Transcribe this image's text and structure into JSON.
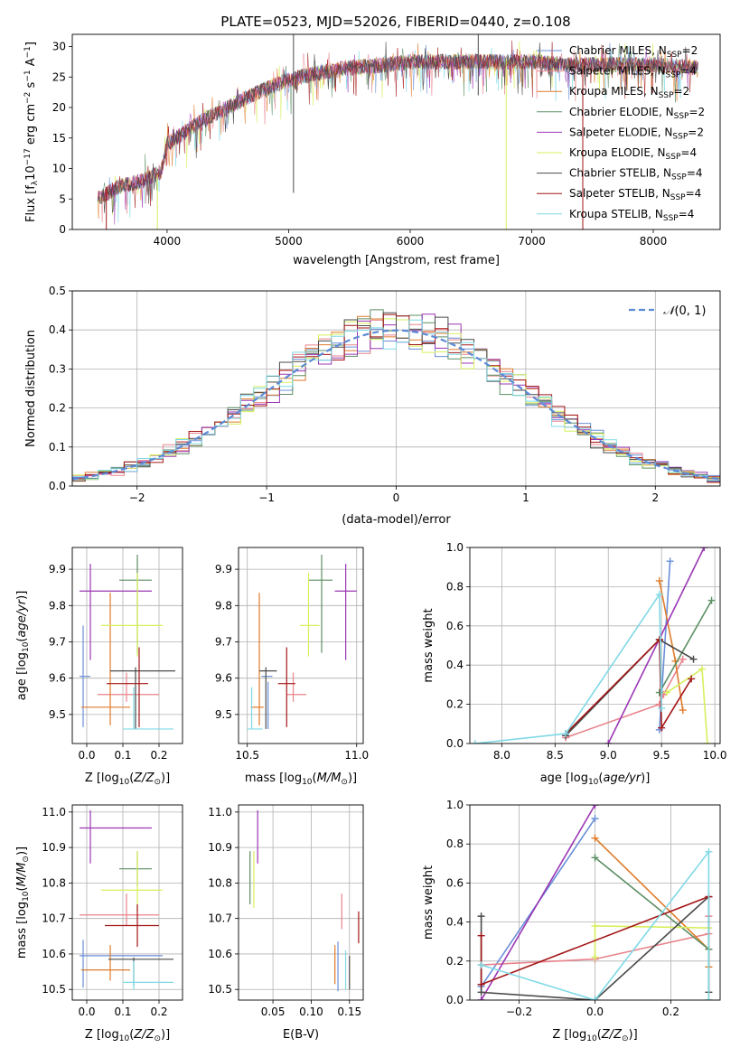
{
  "figure": {
    "title": "PLATE=0523, MJD=52026, FIBERID=0440, z=0.108"
  },
  "models": [
    {
      "name": "Chabrier MILES, N$_{SSP}$=2",
      "label": "Chabrier MILES, N",
      "sub": "SSP",
      "tail": "=2",
      "color": "#6a8fd8"
    },
    {
      "name": "Salpeter MILES, N$_{SSP}$=4",
      "label": "Salpeter MILES, N",
      "sub": "SSP",
      "tail": "=4",
      "color": "#e8838c"
    },
    {
      "name": "Kroupa MILES, N$_{SSP}$=2",
      "label": "Kroupa MILES, N",
      "sub": "SSP",
      "tail": "=2",
      "color": "#e07b2a"
    },
    {
      "name": "Chabrier ELODIE, N$_{SSP}$=2",
      "label": "Chabrier ELODIE, N",
      "sub": "SSP",
      "tail": "=2",
      "color": "#5c8f63"
    },
    {
      "name": "Salpeter ELODIE, N$_{SSP}$=2",
      "label": "Salpeter ELODIE, N",
      "sub": "SSP",
      "tail": "=2",
      "color": "#9b36b4"
    },
    {
      "name": "Kroupa ELODIE, N$_{SSP}$=4",
      "label": "Kroupa ELODIE, N",
      "sub": "SSP",
      "tail": "=4",
      "color": "#d6ef5c"
    },
    {
      "name": "Chabrier STELIB, N$_{SSP}$=4",
      "label": "Chabrier STELIB, N",
      "sub": "SSP",
      "tail": "=4",
      "color": "#4a4a4a"
    },
    {
      "name": "Salpeter STELIB, N$_{SSP}$=4",
      "label": "Salpeter STELIB, N",
      "sub": "SSP",
      "tail": "=4",
      "color": "#a31717"
    },
    {
      "name": "Kroupa STELIB, N$_{SSP}$=4",
      "label": "Kroupa STELIB, N",
      "sub": "SSP",
      "tail": "=4",
      "color": "#7fd9e6"
    }
  ],
  "chart_data": [
    {
      "id": "spectrum",
      "type": "line",
      "xlabel": "wavelength [Angstrom, rest frame]",
      "ylabel": "Flux [f_λ 10^-17 erg cm^-2 s^-1 A^-1]",
      "xlim": [
        3220,
        8550
      ],
      "ylim": [
        0,
        32
      ],
      "xticks": [
        4000,
        5000,
        6000,
        7000,
        8000
      ],
      "yticks": [
        0,
        5,
        10,
        15,
        20,
        25,
        30
      ],
      "x_range": [
        3430,
        8370
      ],
      "continuum": {
        "x": [
          3430,
          3600,
          3800,
          3950,
          4000,
          4300,
          4500,
          4800,
          5000,
          5200,
          5500,
          5800,
          6000,
          6300,
          6600,
          6800,
          7000,
          7300,
          7600,
          8000,
          8370
        ],
        "y": [
          5,
          7,
          8,
          9.5,
          14,
          18,
          20,
          23,
          24.5,
          25.5,
          26.5,
          27,
          27.5,
          27.5,
          27.5,
          27.5,
          27.5,
          27,
          27,
          27,
          26.5
        ]
      },
      "grid": false,
      "legend": "upper right"
    },
    {
      "id": "residuals",
      "type": "histogram",
      "xlabel": "(data-model)/error",
      "ylabel": "Normed distribution",
      "xlim": [
        -2.5,
        2.5
      ],
      "ylim": [
        0,
        0.5
      ],
      "xticks": [
        -2,
        -1,
        0,
        1,
        2
      ],
      "yticks": [
        0.0,
        0.1,
        0.2,
        0.3,
        0.4,
        0.5
      ],
      "bin_width": 0.1,
      "reference": {
        "label": "N(0,1)",
        "mu": 0,
        "sigma": 1
      },
      "grid": true,
      "legend": "upper right"
    },
    {
      "id": "age-vs-Z",
      "type": "errorbar",
      "xlabel": "Z [log10(Z/Z☉)]",
      "ylabel": "age [log10(age/yr)]",
      "xlim": [
        -0.04,
        0.265
      ],
      "ylim": [
        9.42,
        9.96
      ],
      "xticks": [
        0.0,
        0.1,
        0.2
      ],
      "yticks": [
        9.5,
        9.6,
        9.7,
        9.8,
        9.9
      ],
      "points": [
        {
          "m": 0,
          "x": -0.01,
          "xl": 0.01,
          "xh": 0.02,
          "y": 9.605,
          "yl": 9.465,
          "yh": 9.745
        },
        {
          "m": 1,
          "x": 0.11,
          "xl": 0.08,
          "xh": 0.09,
          "y": 9.555,
          "yl": 9.535,
          "yh": 9.615
        },
        {
          "m": 2,
          "x": 0.065,
          "xl": 0.08,
          "xh": 0.055,
          "y": 9.52,
          "yl": 9.47,
          "yh": 9.835
        },
        {
          "m": 3,
          "x": 0.14,
          "xl": 0.05,
          "xh": 0.04,
          "y": 9.87,
          "yl": 9.67,
          "yh": 9.94
        },
        {
          "m": 4,
          "x": 0.01,
          "xl": 0.03,
          "xh": 0.17,
          "y": 9.84,
          "yl": 9.65,
          "yh": 9.915
        },
        {
          "m": 5,
          "x": 0.14,
          "xl": 0.1,
          "xh": 0.07,
          "y": 9.745,
          "yl": 9.66,
          "yh": 9.89
        },
        {
          "m": 6,
          "x": 0.135,
          "xl": 0.07,
          "xh": 0.11,
          "y": 9.62,
          "yl": 9.46,
          "yh": 9.63
        },
        {
          "m": 7,
          "x": 0.145,
          "xl": 0.09,
          "xh": 0.025,
          "y": 9.585,
          "yl": 9.465,
          "yh": 9.685
        },
        {
          "m": 8,
          "x": 0.13,
          "xl": 0.03,
          "xh": 0.11,
          "y": 9.46,
          "yl": 9.46,
          "yh": 9.575
        }
      ]
    },
    {
      "id": "age-vs-mass",
      "type": "errorbar",
      "xlabel": "mass [log10(M/M☉)]",
      "ylabel": "",
      "xlim": [
        10.46,
        11.03
      ],
      "ylim": [
        9.42,
        9.96
      ],
      "xticks": [
        10.5,
        11.0
      ],
      "yticks": [
        9.5,
        9.6,
        9.7,
        9.8,
        9.9
      ],
      "points": [
        {
          "m": 0,
          "x": 10.595,
          "xl": 0.03,
          "xh": 0.02,
          "y": 9.605,
          "yl": 9.46,
          "yh": 9.59
        },
        {
          "m": 1,
          "x": 10.71,
          "xl": 0.03,
          "xh": 0.06,
          "y": 9.555,
          "yl": 9.535,
          "yh": 9.615
        },
        {
          "m": 2,
          "x": 10.555,
          "xl": 0.04,
          "xh": 0.02,
          "y": 9.52,
          "yl": 9.47,
          "yh": 9.835
        },
        {
          "m": 3,
          "x": 10.84,
          "xl": 0.06,
          "xh": 0.05,
          "y": 9.87,
          "yl": 9.67,
          "yh": 9.94
        },
        {
          "m": 4,
          "x": 10.95,
          "xl": 0.05,
          "xh": 0.05,
          "y": 9.84,
          "yl": 9.65,
          "yh": 9.915
        },
        {
          "m": 5,
          "x": 10.78,
          "xl": 0.04,
          "xh": 0.05,
          "y": 9.745,
          "yl": 9.66,
          "yh": 9.89
        },
        {
          "m": 6,
          "x": 10.585,
          "xl": 0.03,
          "xh": 0.05,
          "y": 9.62,
          "yl": 9.46,
          "yh": 9.63
        },
        {
          "m": 7,
          "x": 10.68,
          "xl": 0.04,
          "xh": 0.04,
          "y": 9.585,
          "yl": 9.465,
          "yh": 9.685
        },
        {
          "m": 8,
          "x": 10.52,
          "xl": 0.02,
          "xh": 0.05,
          "y": 9.46,
          "yl": 9.46,
          "yh": 9.575
        }
      ]
    },
    {
      "id": "weight-vs-age",
      "type": "line",
      "xlabel": "age [log10(age/yr)]",
      "ylabel": "mass weight",
      "xlim": [
        7.7,
        10.05
      ],
      "ylim": [
        0,
        1
      ],
      "xticks": [
        8.0,
        8.5,
        9.0,
        9.5,
        10.0
      ],
      "yticks": [
        0.0,
        0.2,
        0.4,
        0.6,
        0.8,
        1.0
      ],
      "series": [
        {
          "m": 0,
          "x": [
            9.48,
            9.58
          ],
          "y": [
            0.07,
            0.93
          ]
        },
        {
          "m": 1,
          "x": [
            8.6,
            9.48,
            9.52,
            9.7
          ],
          "y": [
            0.03,
            0.2,
            0.25,
            0.43
          ]
        },
        {
          "m": 2,
          "x": [
            9.48,
            9.63,
            9.7
          ],
          "y": [
            0.83,
            0.42,
            0.17
          ]
        },
        {
          "m": 3,
          "x": [
            9.48,
            9.97
          ],
          "y": [
            0.26,
            0.73
          ]
        },
        {
          "m": 4,
          "x": [
            9.0,
            9.9
          ],
          "y": [
            0.0,
            1.0
          ]
        },
        {
          "m": 5,
          "x": [
            9.55,
            9.88,
            9.93
          ],
          "y": [
            0.26,
            0.38,
            0.0
          ]
        },
        {
          "m": 6,
          "x": [
            8.6,
            9.48,
            9.8
          ],
          "y": [
            0.04,
            0.53,
            0.43
          ]
        },
        {
          "m": 7,
          "x": [
            8.6,
            9.48,
            9.5,
            9.78
          ],
          "y": [
            0.05,
            0.53,
            0.08,
            0.33
          ]
        },
        {
          "m": 8,
          "x": [
            7.75,
            8.6,
            9.48,
            9.5
          ],
          "y": [
            0.0,
            0.05,
            0.76,
            0.18
          ]
        }
      ]
    },
    {
      "id": "mass-vs-Z",
      "type": "errorbar",
      "xlabel": "Z [log10(Z/Z☉)]",
      "ylabel": "mass [log10(M/M☉)]",
      "xlim": [
        -0.04,
        0.265
      ],
      "ylim": [
        10.47,
        11.02
      ],
      "xticks": [
        0.0,
        0.1,
        0.2
      ],
      "yticks": [
        10.5,
        10.6,
        10.7,
        10.8,
        10.9,
        11.0
      ],
      "points": [
        {
          "m": 0,
          "x": -0.01,
          "xl": 0.01,
          "xh": 0.22,
          "y": 10.595,
          "yl": 0.09,
          "yh": 0.045
        },
        {
          "m": 1,
          "x": 0.11,
          "xl": 0.13,
          "xh": 0.09,
          "y": 10.71,
          "yl": 0.03,
          "yh": 0.06
        },
        {
          "m": 2,
          "x": 0.065,
          "xl": 0.08,
          "xh": 0.055,
          "y": 10.555,
          "yl": 0.03,
          "yh": 0.07
        },
        {
          "m": 3,
          "x": 0.14,
          "xl": 0.05,
          "xh": 0.04,
          "y": 10.84,
          "yl": 0.05,
          "yh": 0.05
        },
        {
          "m": 4,
          "x": 0.01,
          "xl": 0.03,
          "xh": 0.17,
          "y": 10.955,
          "yl": 0.1,
          "yh": 0.05
        },
        {
          "m": 5,
          "x": 0.14,
          "xl": 0.1,
          "xh": 0.07,
          "y": 10.78,
          "yl": 0.06,
          "yh": 0.11
        },
        {
          "m": 6,
          "x": 0.13,
          "xl": 0.07,
          "xh": 0.11,
          "y": 10.585,
          "yl": 0.075,
          "yh": 0.005
        },
        {
          "m": 7,
          "x": 0.14,
          "xl": 0.09,
          "xh": 0.06,
          "y": 10.68,
          "yl": 0.06,
          "yh": 0.06
        },
        {
          "m": 8,
          "x": 0.13,
          "xl": 0.03,
          "xh": 0.11,
          "y": 10.52,
          "yl": 0.02,
          "yh": 0.06
        }
      ]
    },
    {
      "id": "mass-vs-EBV",
      "type": "errorbar",
      "xlabel": "E(B-V)",
      "ylabel": "",
      "xlim": [
        0.005,
        0.168
      ],
      "ylim": [
        10.47,
        11.02
      ],
      "xticks": [
        0.05,
        0.1,
        0.15
      ],
      "yticks": [
        10.5,
        10.6,
        10.7,
        10.8,
        10.9,
        11.0
      ],
      "points": [
        {
          "m": 0,
          "x": 0.135,
          "y": 10.595,
          "yl": 0.1,
          "yh": 0.04
        },
        {
          "m": 1,
          "x": 0.14,
          "y": 10.71,
          "yl": 0.04,
          "yh": 0.06
        },
        {
          "m": 2,
          "x": 0.131,
          "y": 10.555,
          "yl": 0.04,
          "yh": 0.07
        },
        {
          "m": 3,
          "x": 0.02,
          "y": 10.84,
          "yl": 0.1,
          "yh": 0.05
        },
        {
          "m": 4,
          "x": 0.03,
          "y": 10.955,
          "yl": 0.1,
          "yh": 0.05
        },
        {
          "m": 5,
          "x": 0.025,
          "y": 10.78,
          "yl": 0.05,
          "yh": 0.11
        },
        {
          "m": 6,
          "x": 0.15,
          "y": 10.585,
          "yl": 0.085,
          "yh": 0.01
        },
        {
          "m": 7,
          "x": 0.162,
          "y": 10.68,
          "yl": 0.05,
          "yh": 0.04
        },
        {
          "m": 8,
          "x": 0.145,
          "y": 10.54,
          "yl": 0.04,
          "yh": 0.07
        }
      ]
    },
    {
      "id": "weight-vs-Z",
      "type": "line",
      "xlabel": "Z [log10(Z/Z☉)]",
      "ylabel": "mass weight",
      "xlim": [
        -0.33,
        0.33
      ],
      "ylim": [
        0,
        1
      ],
      "xticks": [
        -0.2,
        0.0,
        0.2
      ],
      "yticks": [
        0.0,
        0.2,
        0.4,
        0.6,
        0.8,
        1.0
      ],
      "series": [
        {
          "m": 0,
          "x": [
            -0.3,
            0.0
          ],
          "y": [
            0.07,
            0.93
          ]
        },
        {
          "m": 1,
          "x": [
            -0.3,
            0.0,
            0.3,
            0.3
          ],
          "y": [
            0.18,
            0.21,
            0.34,
            0.43
          ]
        },
        {
          "m": 2,
          "x": [
            0.0,
            0.3,
            0.3
          ],
          "y": [
            0.83,
            0.26,
            0.17
          ]
        },
        {
          "m": 3,
          "x": [
            0.0,
            0.3
          ],
          "y": [
            0.73,
            0.26
          ]
        },
        {
          "m": 4,
          "x": [
            -0.3,
            0.0
          ],
          "y": [
            0.0,
            1.0
          ]
        },
        {
          "m": 5,
          "x": [
            0.0,
            0.0,
            0.3,
            0.3
          ],
          "y": [
            0.22,
            0.38,
            0.37,
            0.0
          ]
        },
        {
          "m": 6,
          "x": [
            -0.3,
            -0.3,
            0.0,
            0.3,
            0.3
          ],
          "y": [
            0.43,
            0.04,
            0.0,
            0.53,
            0.04
          ]
        },
        {
          "m": 7,
          "x": [
            -0.3,
            -0.3,
            0.3
          ],
          "y": [
            0.33,
            0.08,
            0.53
          ]
        },
        {
          "m": 8,
          "x": [
            -0.3,
            0.0,
            0.3,
            0.3
          ],
          "y": [
            0.18,
            0.0,
            0.76,
            0.0
          ]
        }
      ]
    }
  ]
}
